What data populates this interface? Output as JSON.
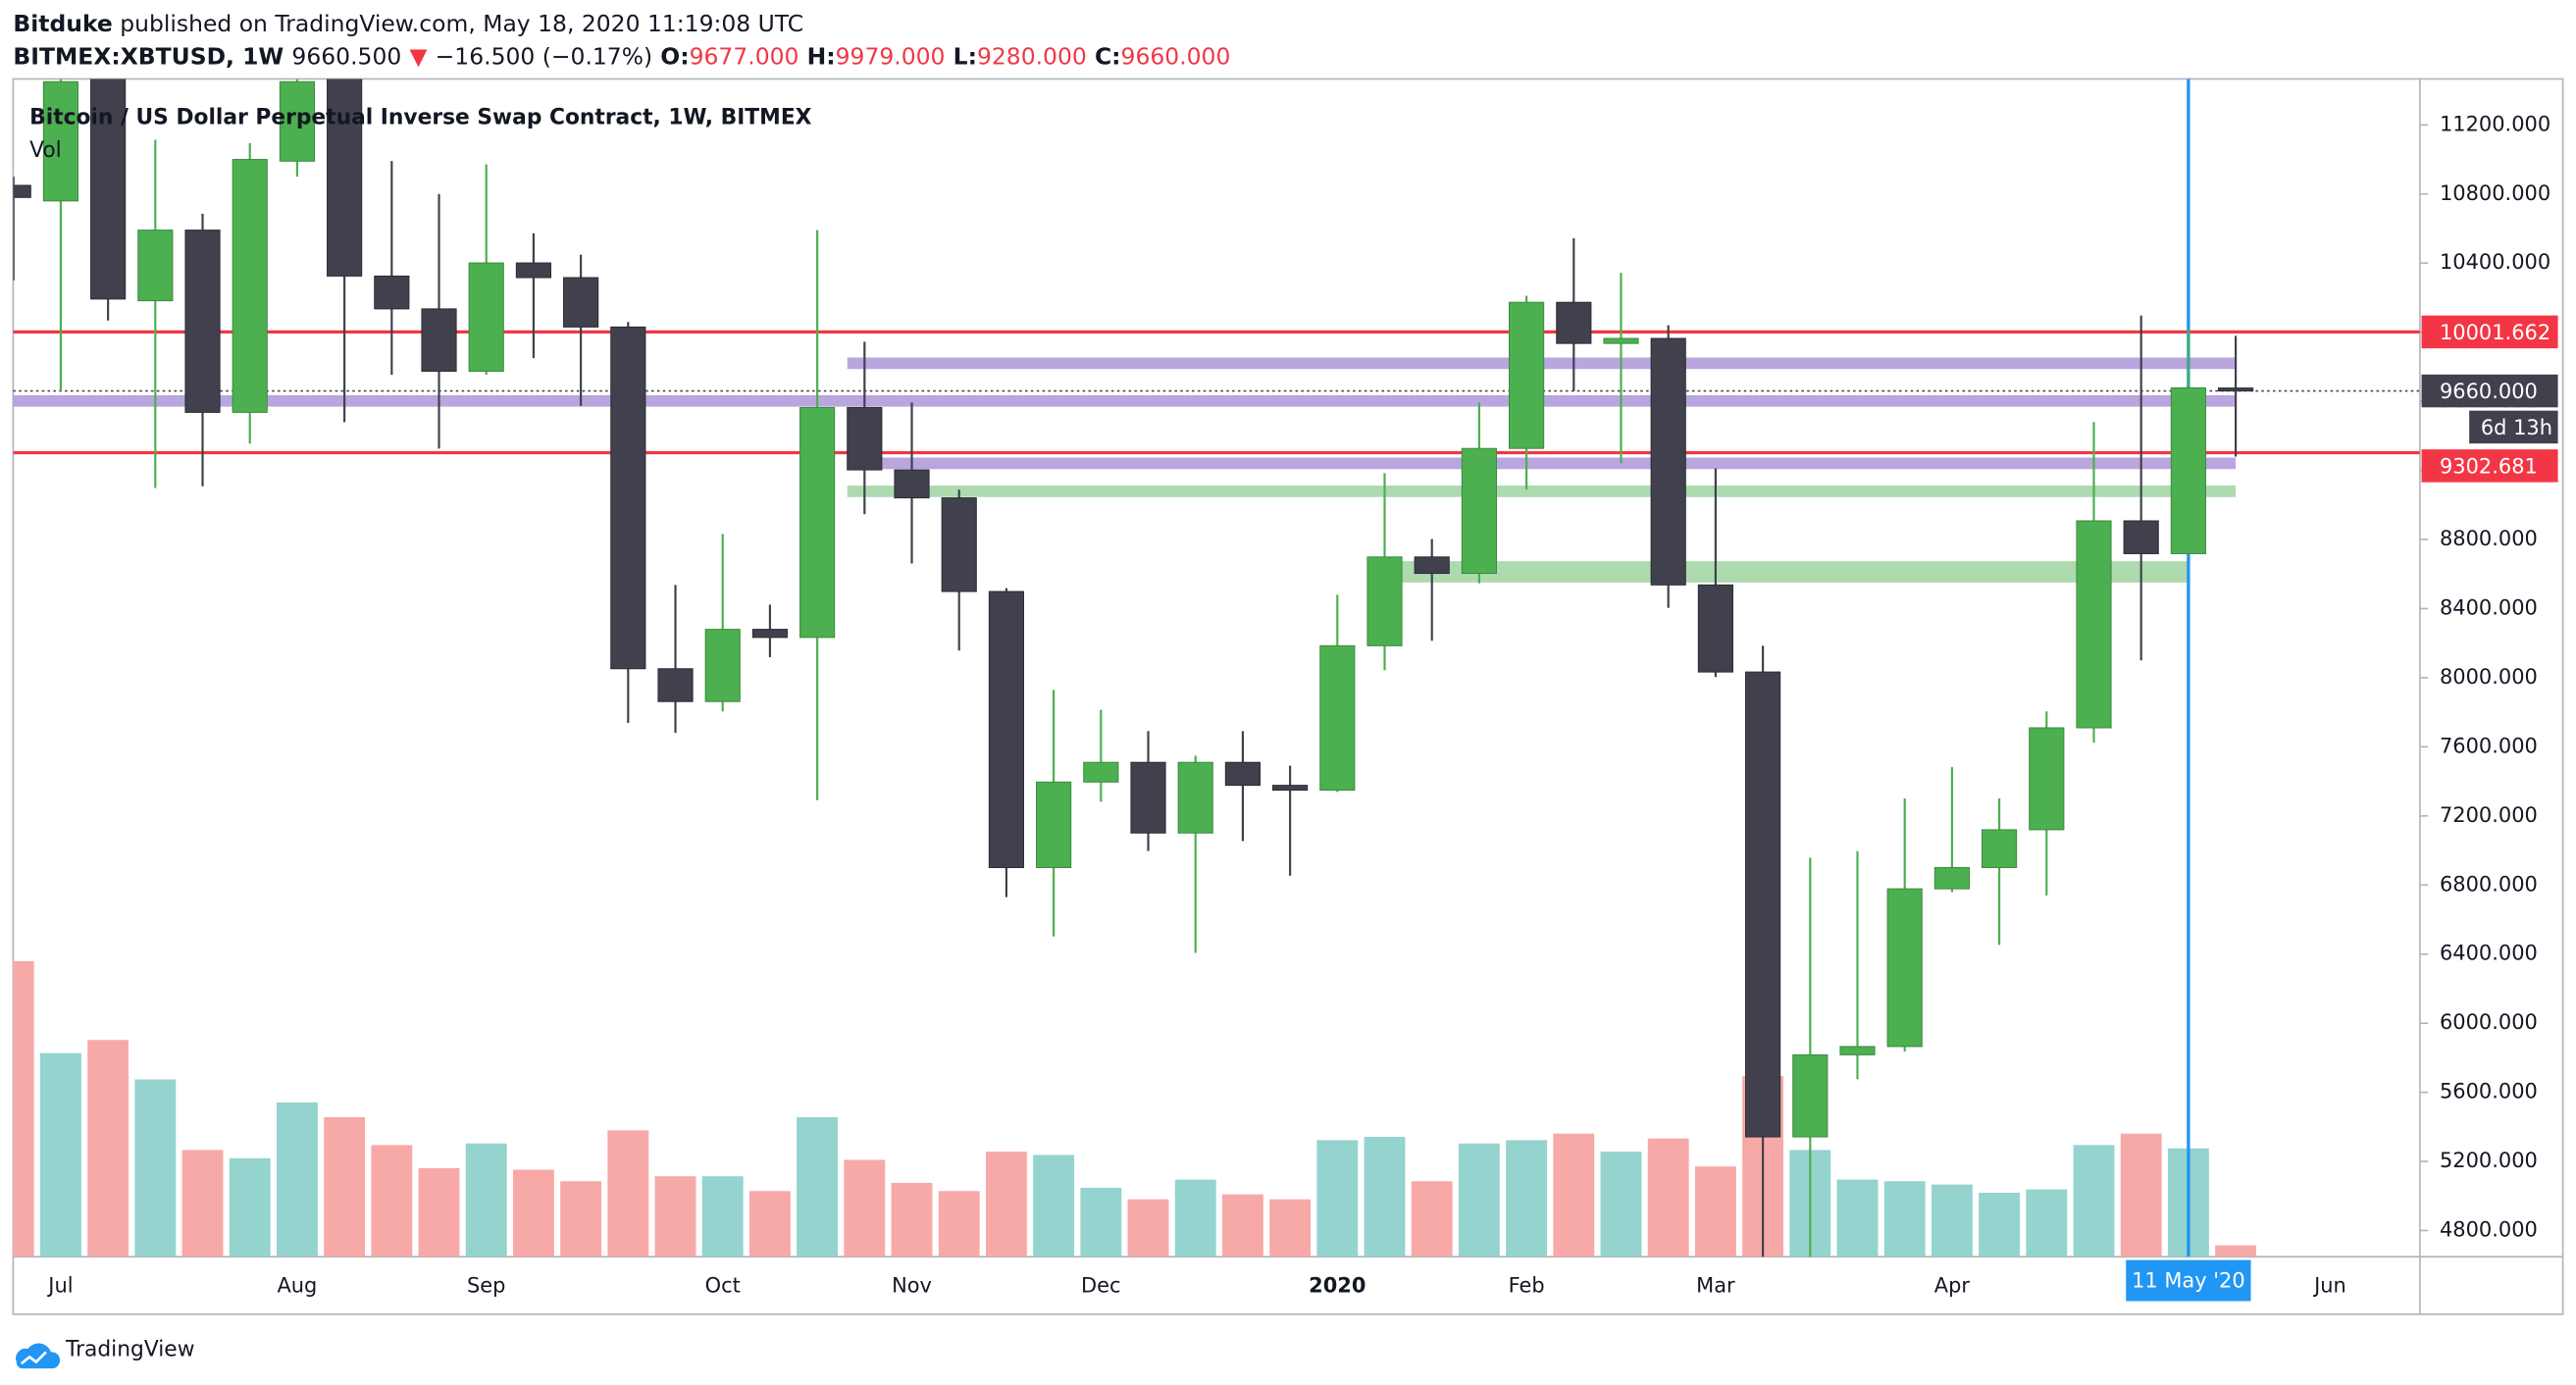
{
  "header": {
    "author": "Bitduke",
    "published": "published on TradingView.com, May 18, 2020 11:19:08 UTC",
    "symbol": "BITMEX:XBTUSD, 1W",
    "price": "9660.500",
    "arrow": "▼",
    "change": "−16.500 (−0.17%)",
    "o_label": "O:",
    "o": "9677.000",
    "h_label": "H:",
    "h": "9979.000",
    "l_label": "L:",
    "l": "9280.000",
    "c_label": "C:",
    "c": "9660.000"
  },
  "footer": {
    "brand": "TradingView"
  },
  "chart_data": {
    "type": "candlestick",
    "title": "Bitcoin / US Dollar Perpetual Inverse Swap Contract, 1W, BITMEX",
    "volume_label": "Vol",
    "categories": [
      null,
      "Jul",
      null,
      null,
      null,
      null,
      "Aug",
      null,
      null,
      null,
      "Sep",
      null,
      null,
      null,
      null,
      "Oct",
      null,
      null,
      null,
      "Nov",
      null,
      null,
      null,
      "Dec",
      null,
      null,
      null,
      null,
      "2020",
      null,
      null,
      null,
      "Feb",
      null,
      null,
      null,
      "Mar",
      null,
      null,
      null,
      null,
      "Apr",
      null,
      null,
      null,
      null,
      null,
      null,
      null,
      "Jun"
    ],
    "open": [
      10850,
      10760,
      11500,
      10182,
      10591,
      9536,
      10990,
      11500,
      10325,
      10135,
      9774,
      10401,
      10316,
      10030,
      8052,
      7862,
      8280,
      8233,
      9564,
      9203,
      9041,
      8499,
      6901,
      7396,
      7510,
      7101,
      7510,
      7377,
      7349,
      8185,
      8699,
      8604,
      9327,
      10173,
      9935,
      9964,
      8537,
      8033,
      5342,
      5817,
      5865,
      6778,
      6901,
      7120,
      7710,
      8908,
      8718,
      9677,
      null,
      null
    ],
    "high": [
      10900,
      11500,
      11700,
      11114,
      10686,
      11095,
      11800,
      12000,
      10991,
      10800,
      10972,
      10572,
      10449,
      10059,
      8537,
      8832,
      8423,
      10591,
      9945,
      9593,
      9089,
      8518,
      7929,
      7814,
      7691,
      7548,
      7691,
      7491,
      8480,
      9184,
      8803,
      9593,
      10211,
      10544,
      10344,
      10040,
      9212,
      8185,
      6958,
      6996,
      7301,
      7482,
      7301,
      7805,
      9479,
      10097,
      10021,
      9979,
      null,
      null
    ],
    "low": [
      10300,
      9659,
      10068,
      9098,
      9108,
      9355,
      10900,
      9479,
      9754,
      9326,
      9754,
      9850,
      9574,
      7738,
      7681,
      7805,
      8119,
      7291,
      8946,
      8661,
      8157,
      6730,
      6502,
      7282,
      6997,
      6407,
      7054,
      6854,
      7339,
      8043,
      8214,
      8547,
      9089,
      9659,
      9241,
      8404,
      8004,
      3850,
      4400,
      5675,
      5836,
      6759,
      6454,
      6740,
      7624,
      8100,
      8765,
      9280,
      null,
      null
    ],
    "close": [
      10780,
      11450,
      10192,
      10591,
      9536,
      11000,
      11450,
      10325,
      10135,
      9774,
      10401,
      10316,
      10030,
      8052,
      7862,
      8280,
      8233,
      9564,
      9203,
      9041,
      8499,
      6901,
      7396,
      7510,
      7101,
      7510,
      7377,
      7349,
      8185,
      8699,
      8604,
      9327,
      10173,
      9935,
      9964,
      8537,
      8033,
      5342,
      5817,
      5865,
      6778,
      6901,
      7120,
      7710,
      8908,
      8718,
      9678,
      9660,
      null,
      null
    ],
    "volume": [
      180,
      124,
      132,
      108,
      65,
      60,
      94,
      85,
      68,
      54,
      69,
      53,
      46,
      77,
      49,
      49,
      40,
      85,
      59,
      45,
      40,
      64,
      62,
      42,
      35,
      47,
      38,
      35,
      71,
      73,
      46,
      69,
      71,
      75,
      64,
      72,
      55,
      110,
      65,
      47,
      46,
      44,
      39,
      41,
      68,
      75,
      66,
      7,
      null,
      null
    ],
    "up_color": "#4caf50",
    "down_color": "#40414d",
    "volume_up_color": "#94d3ce",
    "volume_down_color": "#f7a9a7",
    "ylim": [
      4648,
      11466
    ],
    "yticks": [
      {
        "value": 4800,
        "label": "4800.000"
      },
      {
        "value": 5200,
        "label": "5200.000"
      },
      {
        "value": 5600,
        "label": "5600.000"
      },
      {
        "value": 6000,
        "label": "6000.000"
      },
      {
        "value": 6400,
        "label": "6400.000"
      },
      {
        "value": 6800,
        "label": "6800.000"
      },
      {
        "value": 7200,
        "label": "7200.000"
      },
      {
        "value": 7600,
        "label": "7600.000"
      },
      {
        "value": 8000,
        "label": "8000.000"
      },
      {
        "value": 8400,
        "label": "8400.000"
      },
      {
        "value": 8800,
        "label": "8800.000"
      },
      {
        "value": 9200,
        "label": "9200.000"
      },
      {
        "value": 9600,
        "label": "9600.000"
      },
      {
        "value": 10000,
        "label": "10000.000"
      },
      {
        "value": 10400,
        "label": "10400.000"
      },
      {
        "value": 10800,
        "label": "10800.000"
      },
      {
        "value": 11200,
        "label": "11200.000"
      }
    ],
    "lines": [
      {
        "value": 10001.662,
        "color": "#f23645"
      },
      {
        "value": 9302.681,
        "color": "#f23645"
      }
    ],
    "bands": [
      {
        "value": 9820,
        "start": 18,
        "end": 47,
        "color": "#b39ddb"
      },
      {
        "value": 9602,
        "start": 0,
        "end": 47,
        "color": "#b39ddb"
      },
      {
        "value": 9241,
        "start": 18,
        "end": 47,
        "color": "#b39ddb"
      },
      {
        "value": 9079,
        "start": 18,
        "end": 47,
        "color": "#a5d6a7"
      },
      {
        "value": 8613,
        "start": 29,
        "end": 46,
        "color": "#a5d6a7"
      }
    ],
    "last_price": {
      "value": 9660,
      "label": "9660.000",
      "color": "#40414d"
    },
    "countdown": "6d 13h",
    "crosshair": {
      "index": 46,
      "label": "11 May '20",
      "color": "#2196f3"
    }
  }
}
